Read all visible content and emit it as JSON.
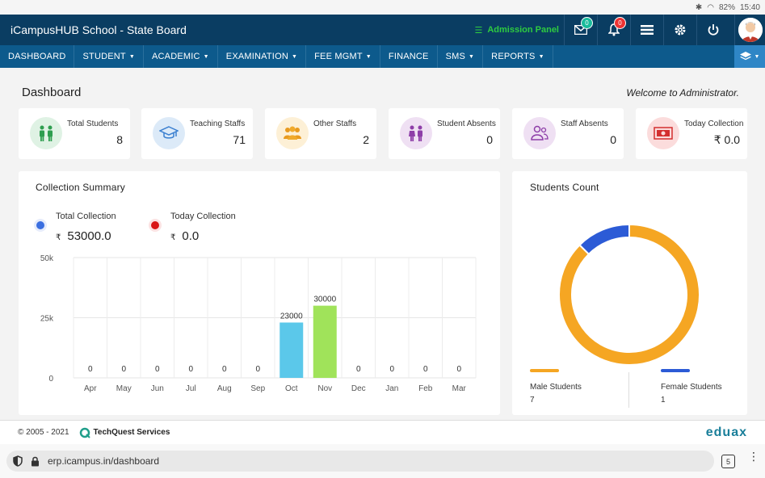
{
  "status": {
    "battery": "82%",
    "time": "15:40"
  },
  "app": {
    "title": "iCampusHUB School - State Board",
    "admission_panel": "Admission Panel"
  },
  "badges": {
    "messages": "0",
    "notifications": "0"
  },
  "nav": [
    "DASHBOARD",
    "STUDENT",
    "ACADEMIC",
    "EXAMINATION",
    "FEE MGMT",
    "FINANCE",
    "SMS",
    "REPORTS"
  ],
  "page": {
    "title": "Dashboard",
    "welcome": "Welcome to Administrator."
  },
  "stats": [
    {
      "label": "Total Students",
      "value": "8",
      "icon": "student-pair-icon",
      "color": "#2e9e4f",
      "bg": "#dff2e4"
    },
    {
      "label": "Teaching Staffs",
      "value": "71",
      "icon": "graduation-cap-icon",
      "color": "#3a7fd0",
      "bg": "#dceaf8"
    },
    {
      "label": "Other Staffs",
      "value": "2",
      "icon": "group-icon",
      "color": "#e89a1f",
      "bg": "#fdf0d6"
    },
    {
      "label": "Student Absents",
      "value": "0",
      "icon": "absent-students-icon",
      "color": "#8e3ea8",
      "bg": "#efe0f3"
    },
    {
      "label": "Staff Absents",
      "value": "0",
      "icon": "absent-staff-icon",
      "color": "#8e3ea8",
      "bg": "#efe0f3"
    },
    {
      "label": "Today Collection",
      "value": "₹ 0.0",
      "icon": "money-icon",
      "color": "#d32f2f",
      "bg": "#fbdcdc"
    }
  ],
  "collection": {
    "title": "Collection Summary",
    "total_label": "Total Collection",
    "total_value": "53000.0",
    "today_label": "Today Collection",
    "today_value": "0.0",
    "currency": "₹"
  },
  "chart_data": {
    "type": "bar",
    "categories": [
      "Apr",
      "May",
      "Jun",
      "Jul",
      "Aug",
      "Sep",
      "Oct",
      "Nov",
      "Dec",
      "Jan",
      "Feb",
      "Mar"
    ],
    "values": [
      0,
      0,
      0,
      0,
      0,
      0,
      23000,
      30000,
      0,
      0,
      0,
      0
    ],
    "bar_colors": {
      "Oct": "#5bc8ea",
      "Nov": "#a0e35a"
    },
    "yticks": [
      "0",
      "25k",
      "50k"
    ],
    "ylim": [
      0,
      50000
    ],
    "grid": true
  },
  "students_count": {
    "title": "Students Count",
    "chart_data": {
      "type": "pie",
      "labels": [
        "Male Students",
        "Female Students"
      ],
      "values": [
        7,
        1
      ],
      "colors": [
        "#f5a623",
        "#2c5bd6"
      ]
    }
  },
  "footer": {
    "copyright": "© 2005 - 2021",
    "company": "TechQuest Services",
    "logo": "eduax"
  },
  "browser": {
    "url": "erp.icampus.in/dashboard",
    "tabs": "5"
  }
}
